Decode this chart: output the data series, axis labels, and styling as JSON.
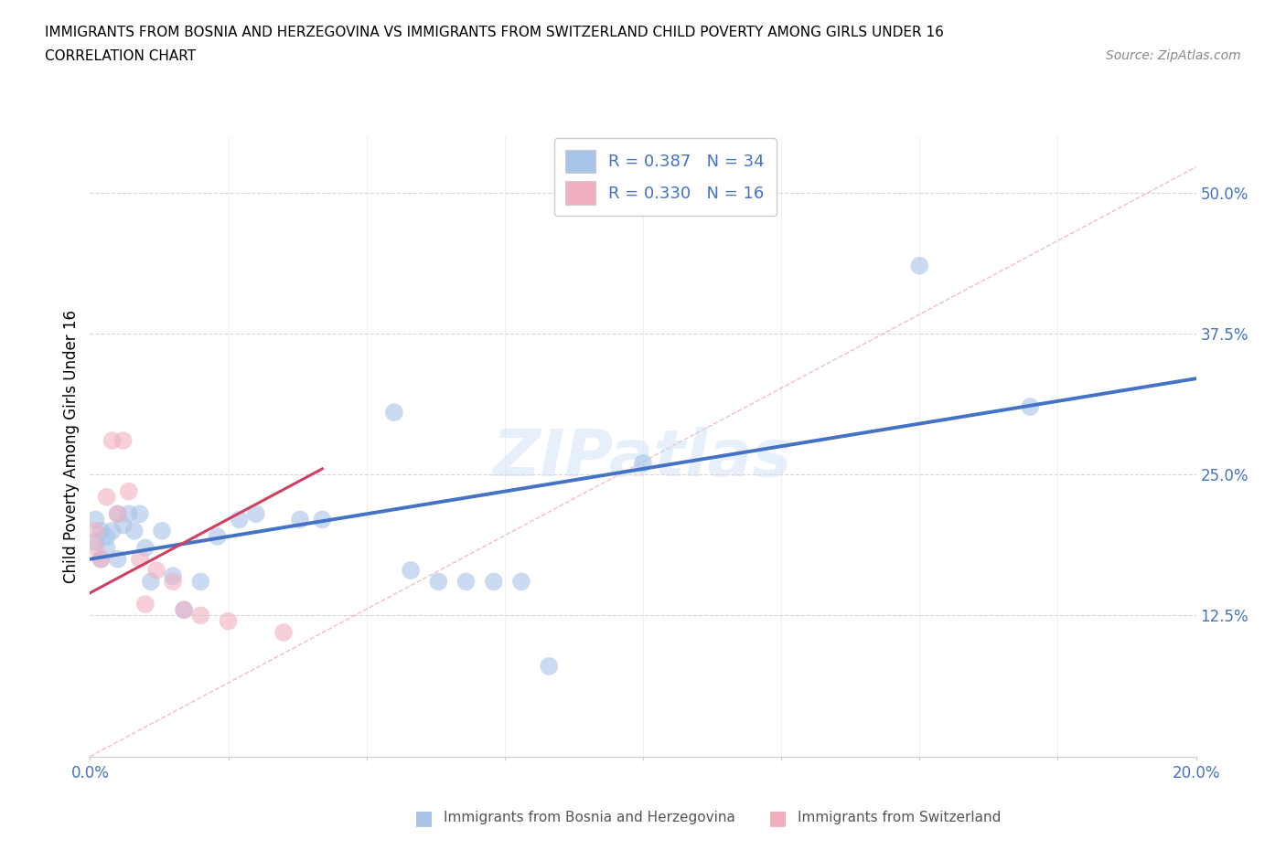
{
  "title_line1": "IMMIGRANTS FROM BOSNIA AND HERZEGOVINA VS IMMIGRANTS FROM SWITZERLAND CHILD POVERTY AMONG GIRLS UNDER 16",
  "title_line2": "CORRELATION CHART",
  "source_text": "Source: ZipAtlas.com",
  "ylabel": "Child Poverty Among Girls Under 16",
  "xlim": [
    0.0,
    0.2
  ],
  "ylim": [
    0.0,
    0.55
  ],
  "yticks": [
    0.0,
    0.125,
    0.25,
    0.375,
    0.5
  ],
  "ytick_labels": [
    "",
    "12.5%",
    "25.0%",
    "37.5%",
    "50.0%"
  ],
  "legend1_R": "0.387",
  "legend1_N": "34",
  "legend2_R": "0.330",
  "legend2_N": "16",
  "color_bosnia": "#a8c4e8",
  "color_switzerland": "#f0b0c0",
  "color_line_bosnia": "#4472c4",
  "color_line_switzerland": "#d04060",
  "color_diag": "#e08090",
  "watermark": "ZIPatlas",
  "bosnia_x": [
    0.001,
    0.001,
    0.002,
    0.002,
    0.003,
    0.003,
    0.004,
    0.005,
    0.005,
    0.006,
    0.007,
    0.008,
    0.009,
    0.01,
    0.011,
    0.013,
    0.015,
    0.017,
    0.02,
    0.023,
    0.027,
    0.03,
    0.038,
    0.042,
    0.055,
    0.058,
    0.063,
    0.068,
    0.073,
    0.078,
    0.083,
    0.1,
    0.15,
    0.17
  ],
  "bosnia_y": [
    0.19,
    0.21,
    0.175,
    0.2,
    0.185,
    0.195,
    0.2,
    0.215,
    0.175,
    0.205,
    0.215,
    0.2,
    0.215,
    0.185,
    0.155,
    0.2,
    0.16,
    0.13,
    0.155,
    0.195,
    0.21,
    0.215,
    0.21,
    0.21,
    0.305,
    0.165,
    0.155,
    0.155,
    0.155,
    0.155,
    0.08,
    0.26,
    0.435,
    0.31
  ],
  "switzerland_x": [
    0.001,
    0.001,
    0.002,
    0.003,
    0.004,
    0.005,
    0.006,
    0.007,
    0.009,
    0.01,
    0.012,
    0.015,
    0.017,
    0.02,
    0.025,
    0.035
  ],
  "switzerland_y": [
    0.185,
    0.2,
    0.175,
    0.23,
    0.28,
    0.215,
    0.28,
    0.235,
    0.175,
    0.135,
    0.165,
    0.155,
    0.13,
    0.125,
    0.12,
    0.11
  ],
  "bosnia_line_x0": 0.0,
  "bosnia_line_y0": 0.175,
  "bosnia_line_x1": 0.2,
  "bosnia_line_y1": 0.335,
  "swiss_line_x0": 0.0,
  "swiss_line_y0": 0.145,
  "swiss_line_x1": 0.042,
  "swiss_line_y1": 0.255
}
